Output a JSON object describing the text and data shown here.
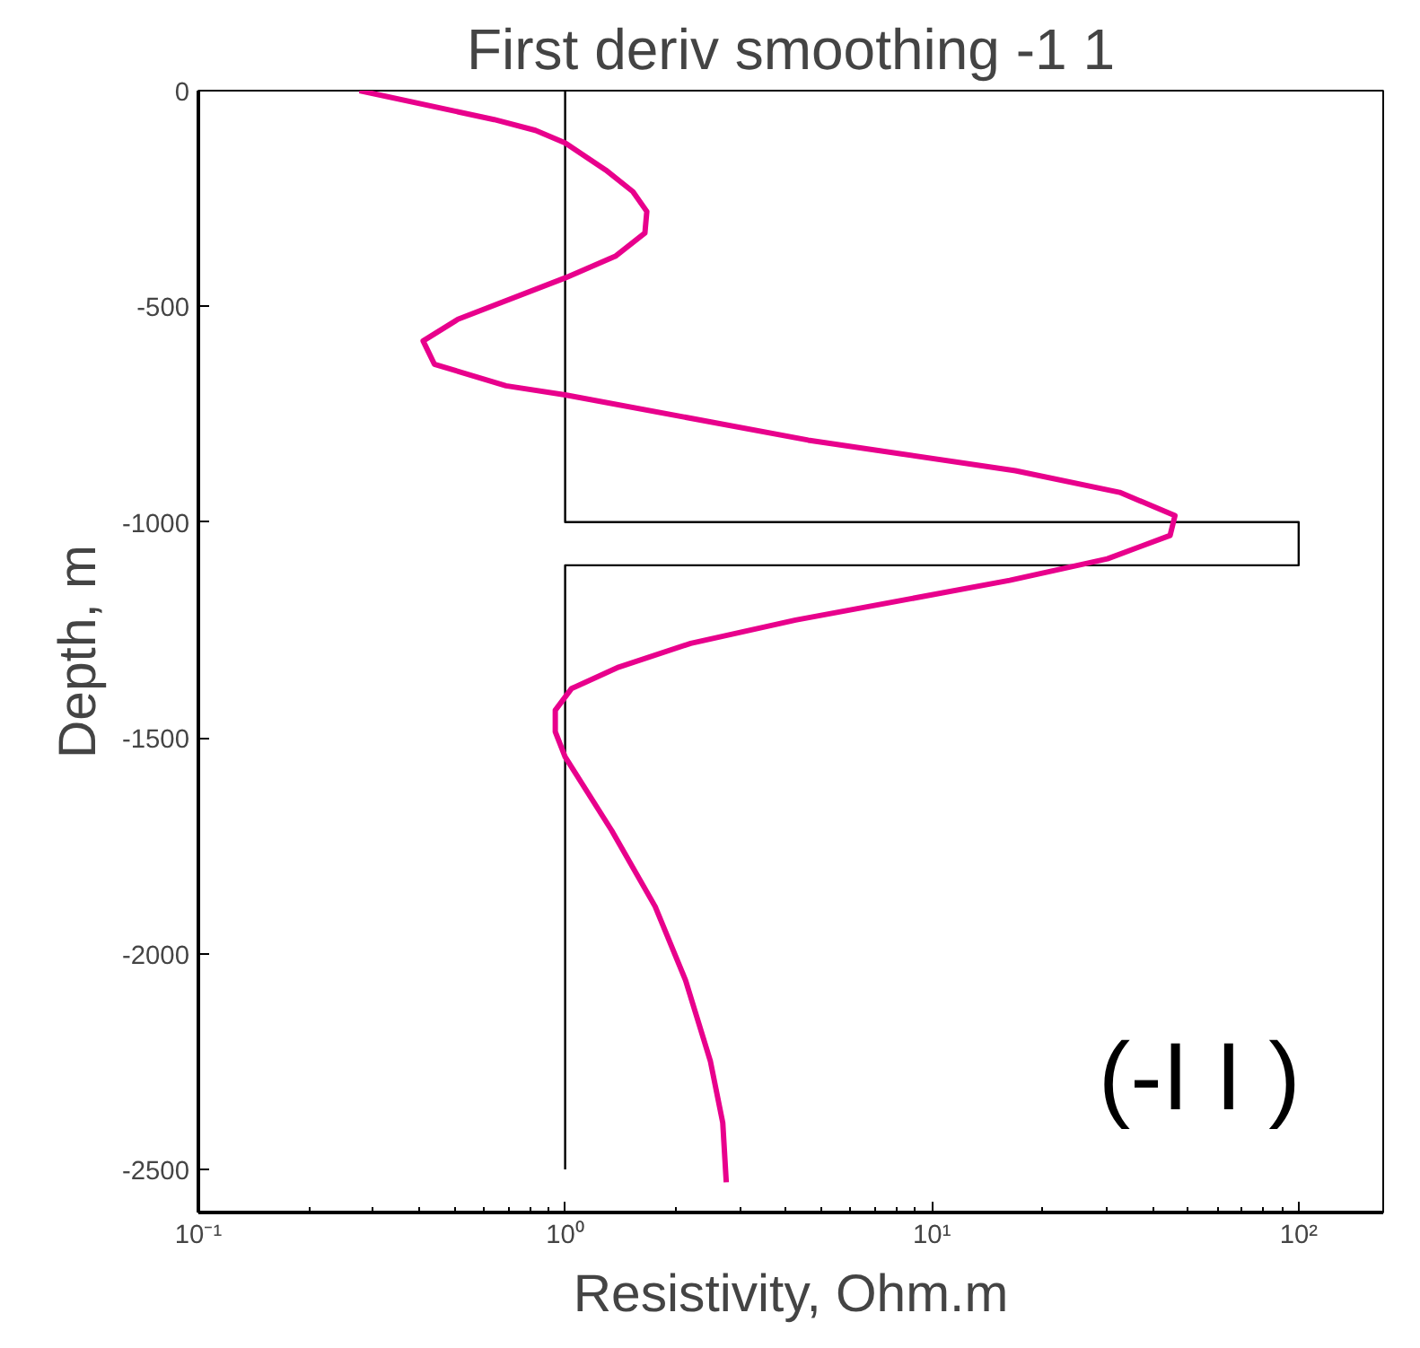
{
  "chart_data": {
    "type": "line",
    "title": "First deriv smoothing -1 1",
    "xlabel": "Resistivity, Ohm.m",
    "ylabel": "Depth, m",
    "log": "x",
    "grid": false,
    "marker": "none",
    "line_style": "solid",
    "xlim": [
      0.1,
      170
    ],
    "xticks": [
      {
        "value": 0.1,
        "label": "10⁻¹"
      },
      {
        "value": 1,
        "label": "10⁰"
      },
      {
        "value": 10,
        "label": "10¹"
      },
      {
        "value": 100,
        "label": "10²"
      }
    ],
    "ylim": [
      -2600,
      0
    ],
    "yticks": [
      0,
      -500,
      -1000,
      -1500,
      -2000,
      -2500
    ],
    "annotations": [
      "(-I  I )"
    ],
    "series": [
      {
        "color": "#000000",
        "x": [
          1,
          1,
          100,
          100,
          1,
          1
        ],
        "values": [
          0,
          -1000,
          -1000,
          -1100,
          -1100,
          -2500
        ]
      },
      {
        "color": "#e8008c",
        "x": [
          0.275,
          0.64,
          0.83,
          1.0,
          1.29,
          1.53,
          1.67,
          1.65,
          1.37,
          1.0,
          0.51,
          0.41,
          0.44,
          0.69,
          1.0,
          4.6,
          16.9,
          32.5,
          46,
          44.6,
          30.1,
          16.3,
          4.25,
          2.2,
          1.4,
          1.04,
          0.94,
          0.94,
          1.0,
          1.34,
          1.76,
          2.13,
          2.49,
          2.69,
          2.75
        ],
        "values": [
          0,
          -67,
          -92,
          -121,
          -184,
          -234,
          -280,
          -330,
          -384,
          -434,
          -530,
          -580,
          -634,
          -684,
          -705,
          -810,
          -881,
          -931,
          -985,
          -1031,
          -1085,
          -1135,
          -1227,
          -1281,
          -1336,
          -1386,
          -1436,
          -1486,
          -1544,
          -1715,
          -1891,
          -2062,
          -2250,
          -2392,
          -2530
        ]
      }
    ]
  }
}
